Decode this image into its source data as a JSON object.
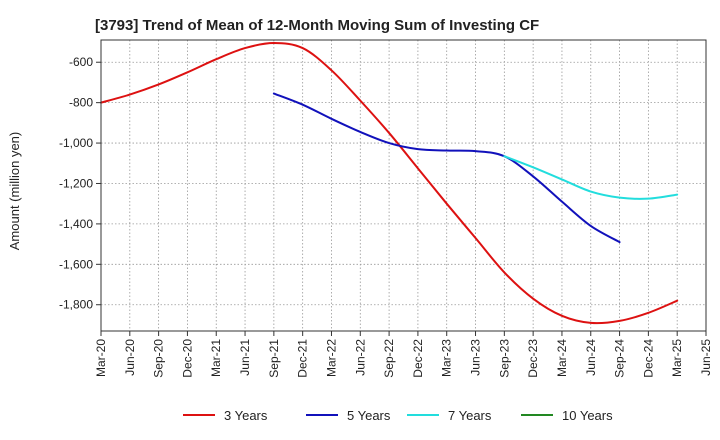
{
  "chart_data": {
    "type": "line",
    "title": "[3793]  Trend of Mean of 12-Month Moving Sum of Investing CF",
    "xlabel": "",
    "ylabel": "Amount (million yen)",
    "ylim": [
      -1930,
      -490
    ],
    "yticks": [
      -600,
      -800,
      -1000,
      -1200,
      -1400,
      -1600,
      -1800
    ],
    "ytick_labels": [
      "-600",
      "-800",
      "-1,000",
      "-1,200",
      "-1,400",
      "-1,600",
      "-1,800"
    ],
    "x_ticks": [
      "Mar-20",
      "Jun-20",
      "Sep-20",
      "Dec-20",
      "Mar-21",
      "Jun-21",
      "Sep-21",
      "Dec-21",
      "Mar-22",
      "Jun-22",
      "Sep-22",
      "Dec-22",
      "Mar-23",
      "Jun-23",
      "Sep-23",
      "Dec-23",
      "Mar-24",
      "Jun-24",
      "Sep-24",
      "Dec-24",
      "Mar-25",
      "Jun-25"
    ],
    "grid": true,
    "legend_position": "bottom",
    "series": [
      {
        "name": "3 Years",
        "color": "#dd1111",
        "start_index": 0,
        "values": [
          -800,
          -760,
          -710,
          -650,
          -585,
          -530,
          -505,
          -530,
          -640,
          -790,
          -950,
          -1125,
          -1300,
          -1470,
          -1640,
          -1770,
          -1855,
          -1890,
          -1880,
          -1840,
          -1780
        ]
      },
      {
        "name": "5 Years",
        "color": "#1111bb",
        "start_index": 6,
        "values": [
          -755,
          -810,
          -880,
          -945,
          -1000,
          -1030,
          -1037,
          -1040,
          -1065,
          -1165,
          -1290,
          -1410,
          -1490
        ]
      },
      {
        "name": "7 Years",
        "color": "#22dddd",
        "start_index": 14,
        "values": [
          -1065,
          -1120,
          -1180,
          -1240,
          -1270,
          -1275,
          -1255
        ]
      },
      {
        "name": "10 Years",
        "color": "#228822",
        "start_index": 0,
        "values": []
      }
    ]
  }
}
